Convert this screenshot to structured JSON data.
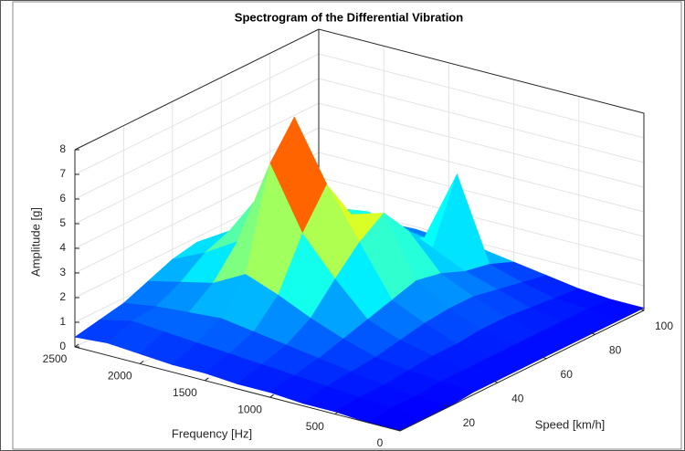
{
  "chart_data": {
    "type": "surface3d",
    "title": "Spectrogram of the Differential Vibration",
    "xlabel": "Frequency [Hz]",
    "ylabel": "Speed [km/h]",
    "zlabel": "Amplitude [g]",
    "x": [
      0,
      250,
      500,
      750,
      1000,
      1250,
      1500,
      1750,
      2000,
      2250,
      2500
    ],
    "y": [
      0,
      10,
      20,
      30,
      40,
      50,
      60,
      70,
      80,
      90,
      100
    ],
    "z": [
      [
        0,
        0,
        0.1,
        0.1,
        0.2,
        0.2,
        0.3,
        0.3,
        0.4,
        0.5,
        0.4
      ],
      [
        0,
        0.1,
        0.2,
        0.3,
        0.4,
        0.5,
        0.6,
        0.7,
        0.8,
        0.9,
        0.6
      ],
      [
        0,
        0.1,
        0.2,
        0.4,
        0.6,
        0.8,
        1.0,
        1.2,
        1.1,
        1.0,
        0.8
      ],
      [
        0.1,
        0.2,
        0.3,
        0.5,
        0.9,
        1.4,
        2.0,
        2.5,
        1.8,
        1.5,
        1.2
      ],
      [
        0.1,
        0.2,
        0.4,
        0.7,
        1.2,
        2.5,
        4.0,
        6.5,
        3.0,
        2.2,
        1.6
      ],
      [
        0.1,
        0.2,
        0.4,
        0.9,
        1.5,
        3.5,
        5.5,
        7.9,
        4.5,
        2.6,
        1.8
      ],
      [
        0.1,
        0.2,
        0.5,
        1.0,
        1.8,
        4.2,
        3.8,
        5.0,
        3.5,
        2.0,
        1.5
      ],
      [
        0.1,
        0.2,
        0.5,
        1.0,
        1.6,
        3.0,
        2.5,
        3.2,
        2.5,
        1.5,
        1.0
      ],
      [
        0.1,
        0.2,
        0.4,
        0.8,
        1.2,
        1.8,
        1.8,
        2.6,
        1.8,
        1.2,
        0.8
      ],
      [
        0.1,
        0.2,
        0.3,
        0.6,
        1.0,
        4.3,
        1.4,
        1.6,
        1.2,
        0.8,
        0.5
      ],
      [
        0.1,
        0.1,
        0.2,
        0.4,
        0.6,
        0.8,
        0.8,
        0.9,
        0.7,
        0.5,
        0.3
      ]
    ],
    "colormap": "jet",
    "xlim": [
      0,
      2500
    ],
    "xticks": [
      0,
      500,
      1000,
      1500,
      2000,
      2500
    ],
    "ylim": [
      0,
      100
    ],
    "yticks": [
      20,
      40,
      60,
      80,
      100
    ],
    "zlim": [
      0,
      8
    ],
    "zticks": [
      0,
      1,
      2,
      3,
      4,
      5,
      6,
      7,
      8
    ],
    "grid": true
  }
}
